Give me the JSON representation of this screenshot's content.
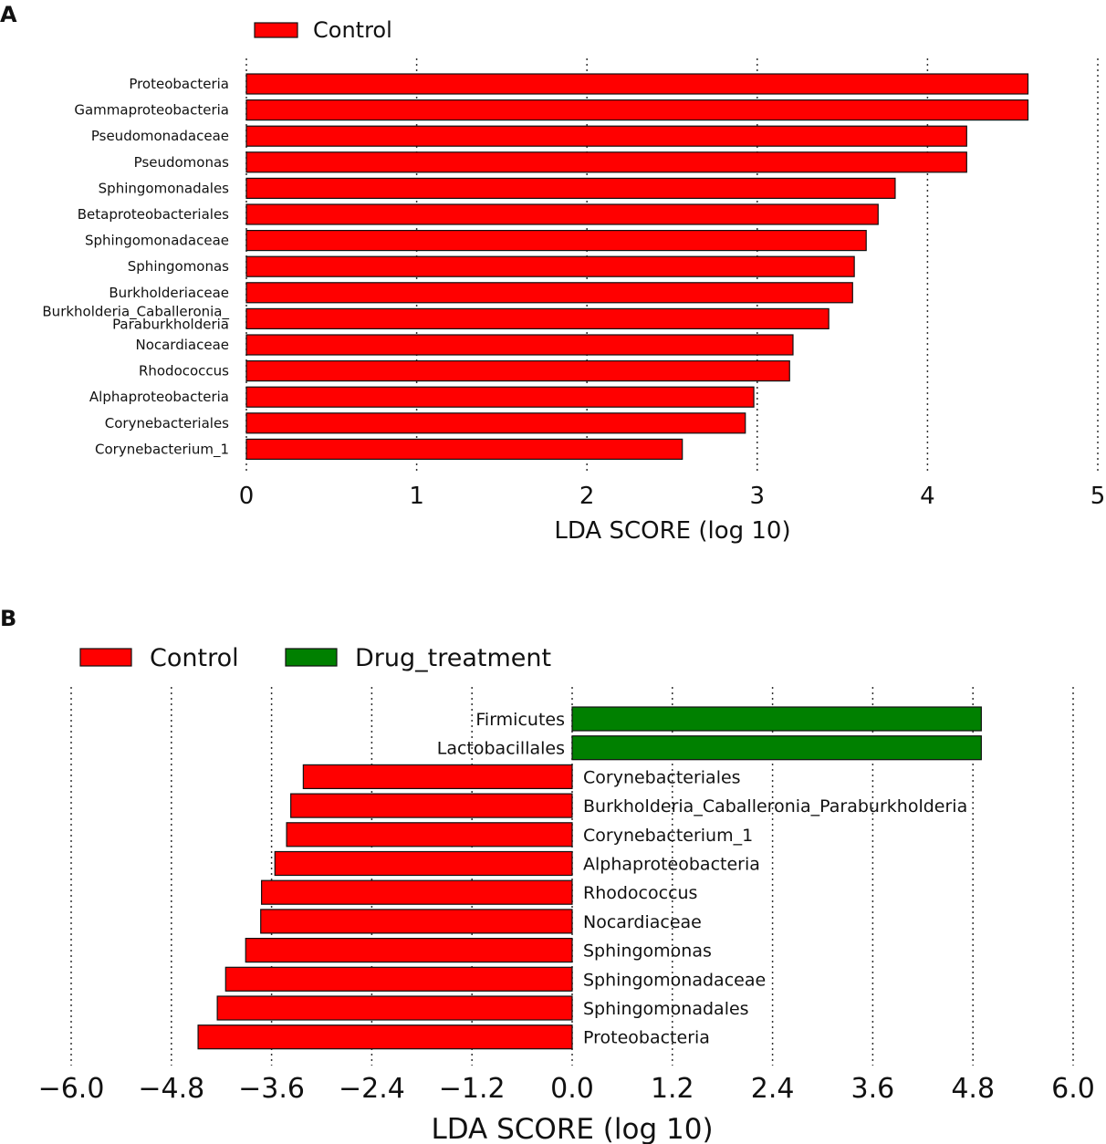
{
  "chart_data": [
    {
      "panel": "A",
      "type": "bar",
      "orientation": "horizontal",
      "title": "",
      "xlabel": "LDA SCORE (log 10)",
      "ylabel": "",
      "xlim": [
        0,
        5
      ],
      "xticks": [
        "0",
        "1",
        "2",
        "3",
        "4",
        "5"
      ],
      "grid": true,
      "legend": [
        {
          "name": "Control",
          "color": "#ff0000"
        }
      ],
      "legend_position": "top-left",
      "categories": [
        "Proteobacteria",
        "Gammaproteobacteria",
        "Pseudomonadaceae",
        "Pseudomonas",
        "Sphingomonadales",
        "Betaproteobacteriales",
        "Sphingomonadaceae",
        "Sphingomonas",
        "Burkholderiaceae",
        "Burkholderia_Caballeronia_\nParaburkholderia",
        "Nocardiaceae",
        "Rhodococcus",
        "Alphaproteobacteria",
        "Corynebacteriales",
        "Corynebacterium_1"
      ],
      "values": [
        4.59,
        4.59,
        4.23,
        4.23,
        3.81,
        3.71,
        3.64,
        3.57,
        3.56,
        3.42,
        3.21,
        3.19,
        2.98,
        2.93,
        2.56
      ],
      "group": "Control"
    },
    {
      "panel": "B",
      "type": "bar",
      "orientation": "horizontal",
      "title": "",
      "xlabel": "LDA SCORE (log 10)",
      "ylabel": "",
      "xlim": [
        -6.0,
        6.0
      ],
      "xticks": [
        "−6.0",
        "−4.8",
        "−3.6",
        "−2.4",
        "−1.2",
        "0.0",
        "1.2",
        "2.4",
        "3.6",
        "4.8",
        "6.0"
      ],
      "grid": true,
      "legend": [
        {
          "name": "Control",
          "color": "#ff0000"
        },
        {
          "name": "Drug_treatment",
          "color": "#008000"
        }
      ],
      "legend_position": "top-left",
      "categories": [
        "Firmicutes",
        "Lactobacillales",
        "Corynebacteriales",
        "Burkholderia_Caballeronia_Paraburkholderia",
        "Corynebacterium_1",
        "Alphaproteobacteria",
        "Rhodococcus",
        "Nocardiaceae",
        "Sphingomonas",
        "Sphingomonadaceae",
        "Sphingomonadales",
        "Proteobacteria"
      ],
      "values": [
        4.9,
        4.9,
        -3.22,
        -3.37,
        -3.42,
        -3.56,
        -3.72,
        -3.73,
        -3.91,
        -4.15,
        -4.25,
        -4.48
      ],
      "groups": [
        "Drug_treatment",
        "Drug_treatment",
        "Control",
        "Control",
        "Control",
        "Control",
        "Control",
        "Control",
        "Control",
        "Control",
        "Control",
        "Control"
      ]
    }
  ]
}
